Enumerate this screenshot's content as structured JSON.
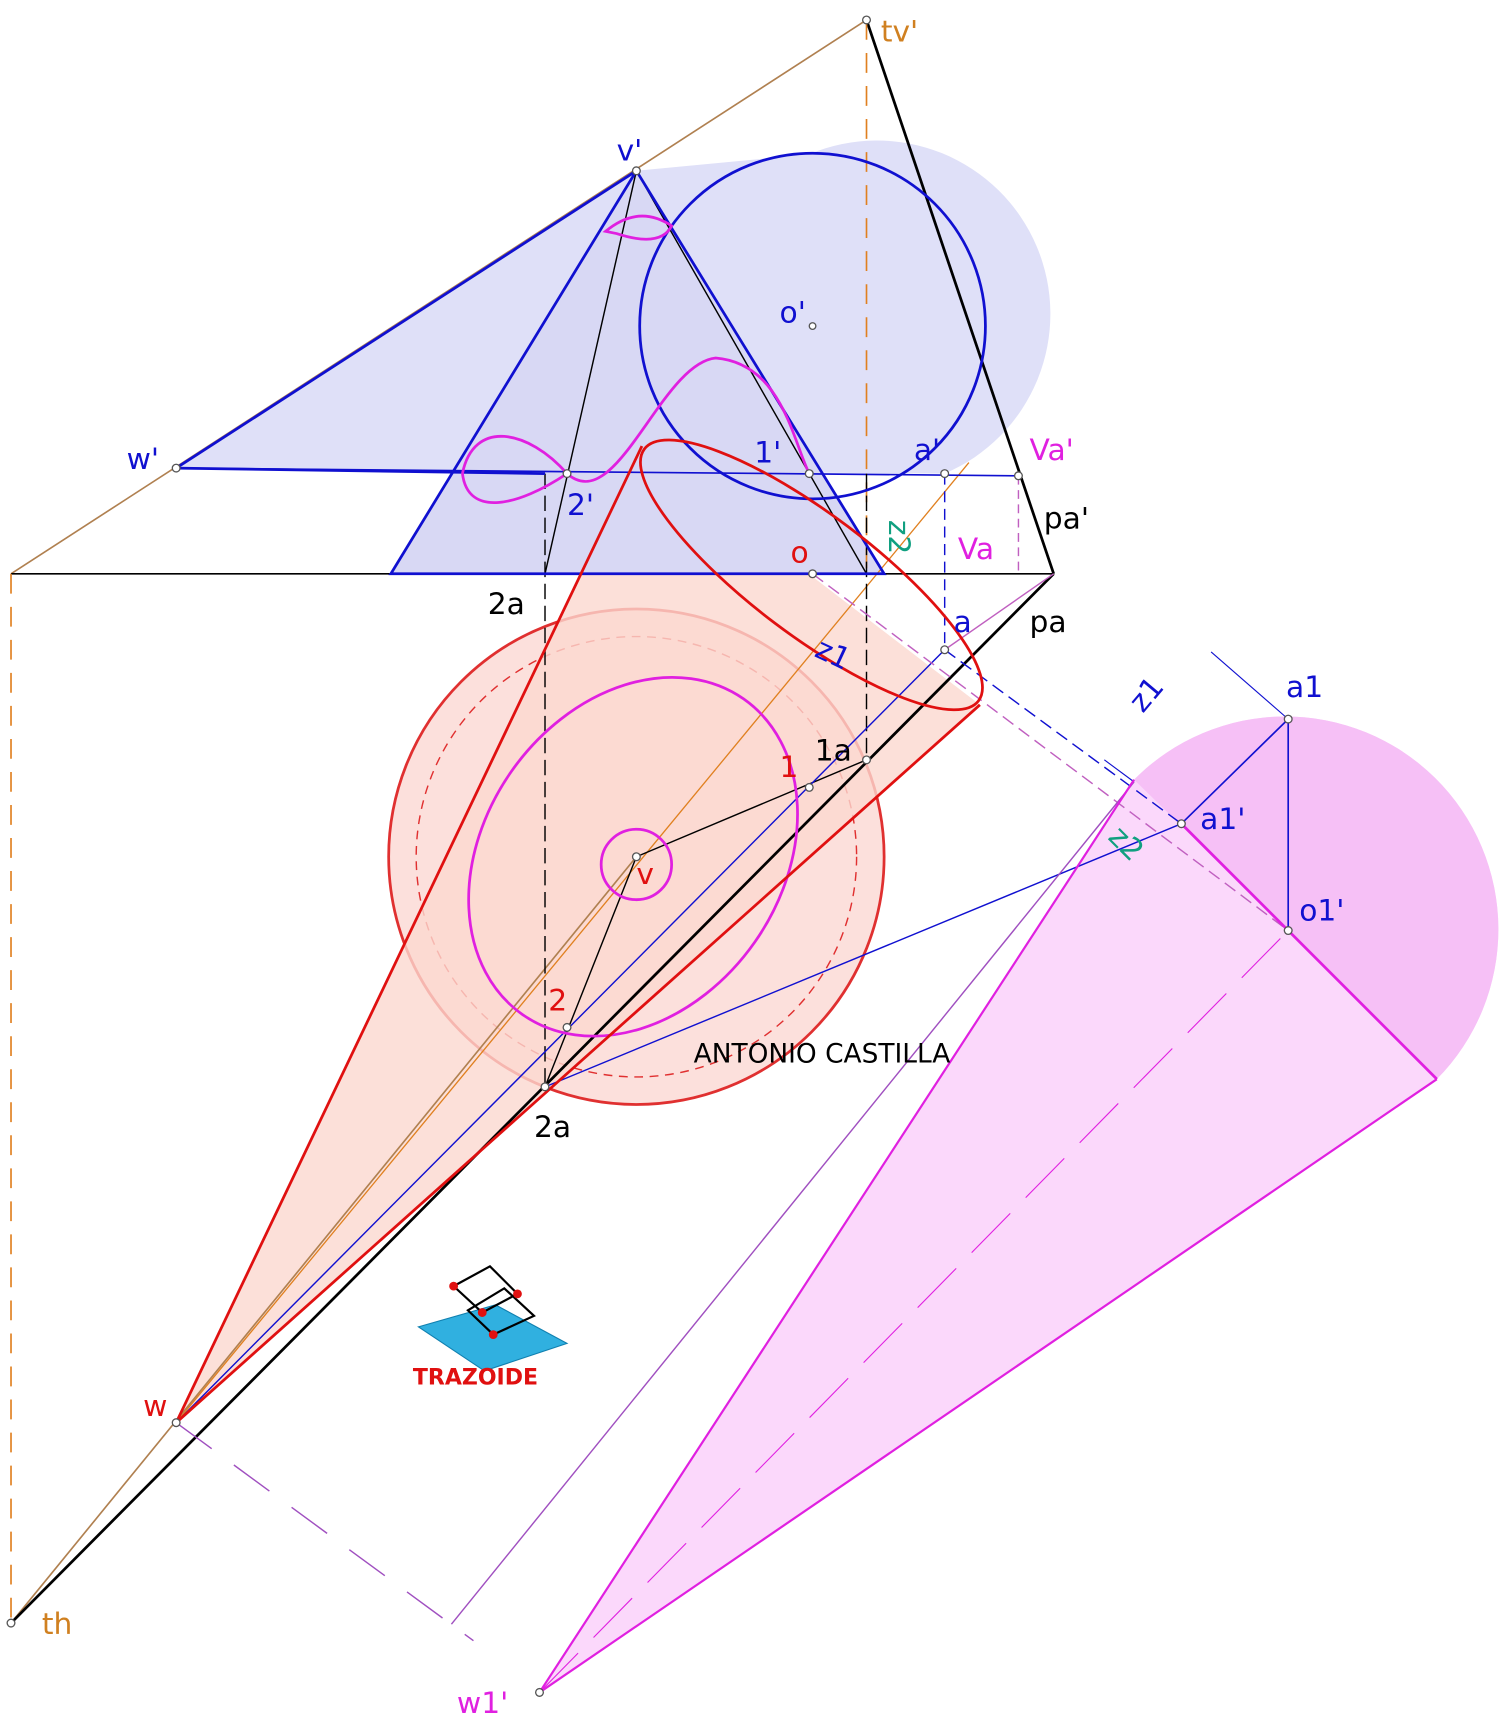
{
  "labels": [
    "tv'",
    "v'",
    "o'",
    "w'",
    "2'",
    "1'",
    "a'",
    "Va'",
    "pa'",
    "Va",
    "o",
    "a",
    "pa",
    "2a",
    "z1",
    "z2",
    "1a",
    "1",
    "v",
    "2",
    "2a",
    "z1",
    "a1",
    "a1'",
    "z2",
    "o1'",
    "w",
    "th",
    "w1'"
  ],
  "credit": "ANTONIO CASTILLA",
  "logo": "TRAZOIDE"
}
